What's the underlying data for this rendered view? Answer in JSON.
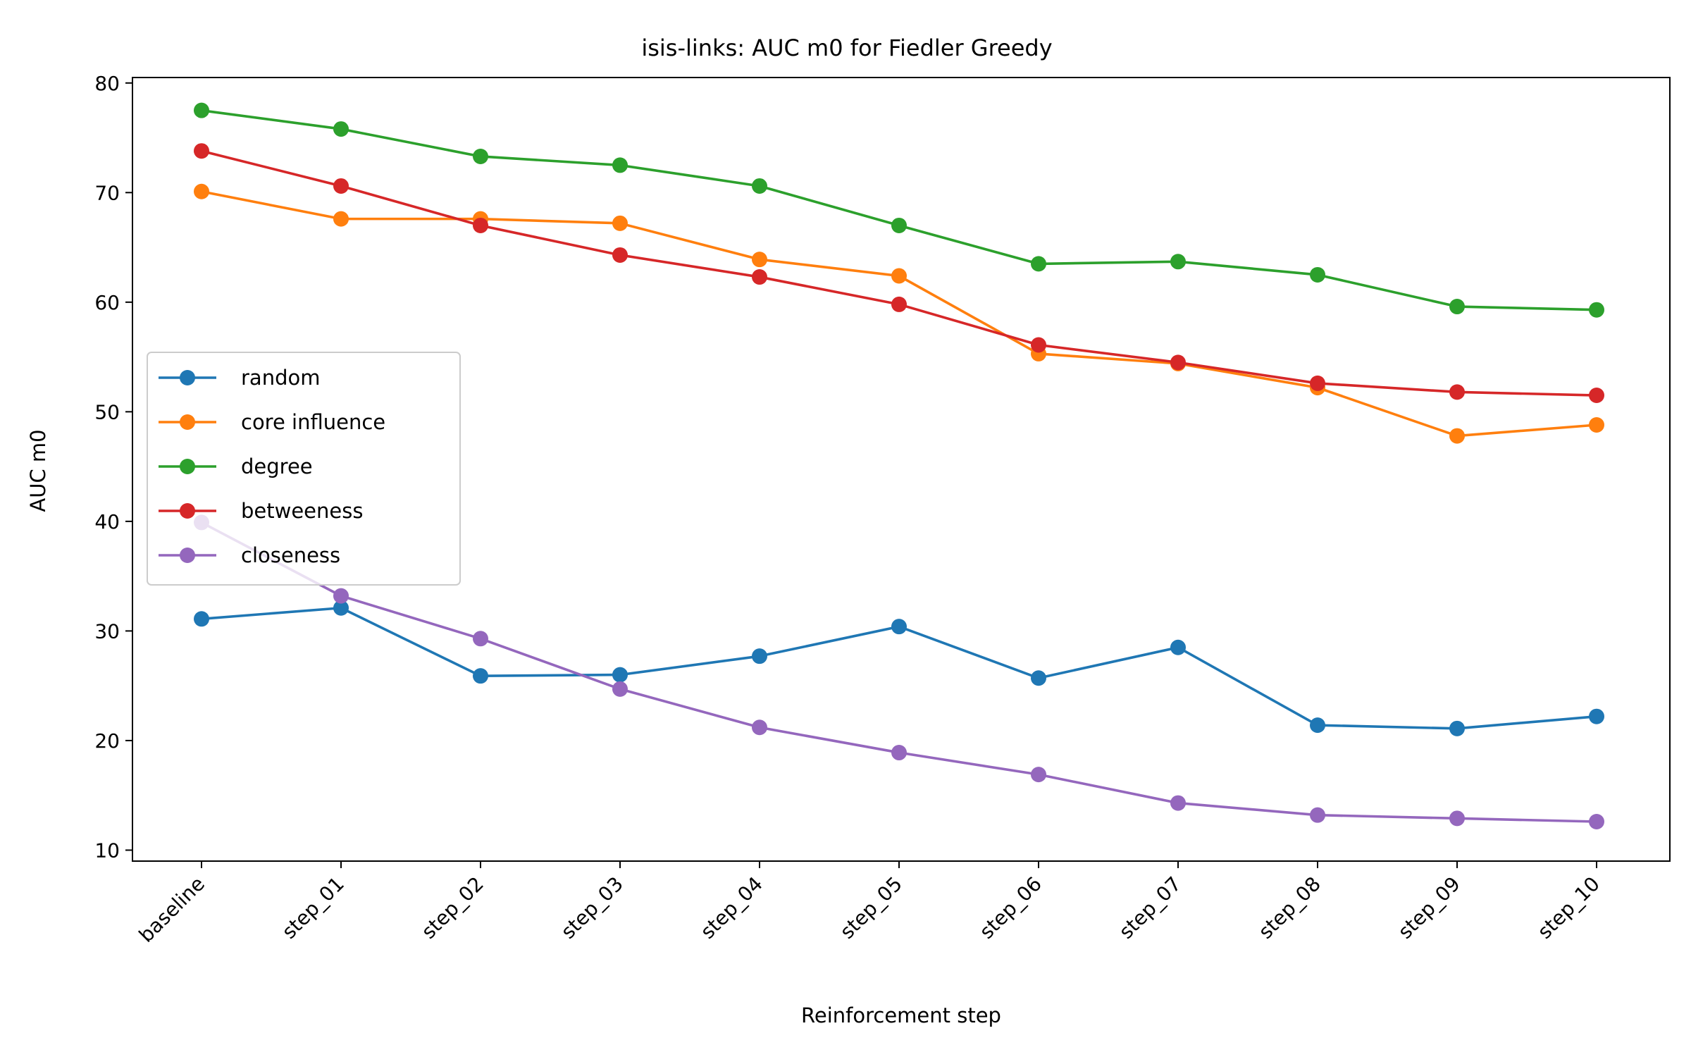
{
  "chart_data": {
    "type": "line",
    "title": "isis-links: AUC m0 for Fiedler Greedy",
    "xlabel": "Reinforcement step",
    "ylabel": "AUC m0",
    "categories": [
      "baseline",
      "step_01",
      "step_02",
      "step_03",
      "step_04",
      "step_05",
      "step_06",
      "step_07",
      "step_08",
      "step_09",
      "step_10"
    ],
    "ylim": [
      9,
      80.5
    ],
    "yticks": [
      10,
      20,
      30,
      40,
      50,
      60,
      70,
      80
    ],
    "grid": false,
    "legend_position": "center-left",
    "series": [
      {
        "name": "random",
        "color": "#1f77b4",
        "values": [
          31.1,
          32.1,
          25.9,
          26.0,
          27.7,
          30.4,
          25.7,
          28.5,
          21.4,
          21.1,
          22.2
        ]
      },
      {
        "name": "core influence",
        "color": "#ff7f0e",
        "values": [
          70.1,
          67.6,
          67.6,
          67.2,
          63.9,
          62.4,
          55.3,
          54.4,
          52.2,
          47.8,
          48.8
        ]
      },
      {
        "name": "degree",
        "color": "#2ca02c",
        "values": [
          77.5,
          75.8,
          73.3,
          72.5,
          70.6,
          67.0,
          63.5,
          63.7,
          62.5,
          59.6,
          59.3
        ]
      },
      {
        "name": "betweeness",
        "color": "#d62728",
        "values": [
          73.8,
          70.6,
          67.0,
          64.3,
          62.3,
          59.8,
          56.1,
          54.5,
          52.6,
          51.8,
          51.5
        ]
      },
      {
        "name": "closeness",
        "color": "#9467bd",
        "values": [
          39.9,
          33.2,
          29.3,
          24.7,
          21.2,
          18.9,
          16.9,
          14.3,
          13.2,
          12.9,
          12.6
        ]
      }
    ]
  }
}
